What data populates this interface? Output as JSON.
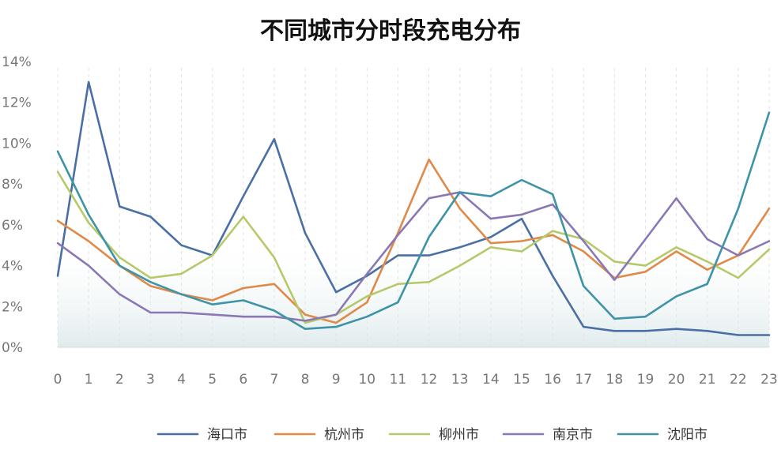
{
  "chart_data": {
    "type": "line",
    "title": "不同城市分时段充电分布",
    "xlabel": "",
    "ylabel": "",
    "categories": [
      "0",
      "1",
      "2",
      "3",
      "4",
      "5",
      "6",
      "7",
      "8",
      "9",
      "10",
      "11",
      "12",
      "13",
      "14",
      "15",
      "16",
      "17",
      "18",
      "19",
      "20",
      "21",
      "22",
      "23"
    ],
    "ylim": [
      0,
      14
    ],
    "yticks": [
      "0%",
      "2%",
      "4%",
      "6%",
      "8%",
      "10%",
      "12%",
      "14%"
    ],
    "grid": "vertical dashed",
    "legend_position": "bottom",
    "series": [
      {
        "name": "海口市",
        "color": "#4a6fa5",
        "values": [
          3.5,
          13.0,
          6.9,
          6.4,
          5.0,
          4.5,
          7.4,
          10.2,
          5.6,
          2.7,
          3.5,
          4.5,
          4.5,
          4.9,
          5.4,
          6.3,
          3.5,
          1.0,
          0.8,
          0.8,
          0.9,
          0.8,
          0.6,
          0.6
        ]
      },
      {
        "name": "杭州市",
        "color": "#e08a4a",
        "values": [
          6.2,
          5.2,
          4.0,
          3.0,
          2.6,
          2.3,
          2.9,
          3.1,
          1.6,
          1.2,
          2.2,
          5.6,
          9.2,
          6.8,
          5.1,
          5.2,
          5.5,
          4.7,
          3.4,
          3.7,
          4.7,
          3.8,
          4.5,
          6.8
        ]
      },
      {
        "name": "柳州市",
        "color": "#b6c96a",
        "values": [
          8.6,
          6.1,
          4.4,
          3.4,
          3.6,
          4.5,
          6.4,
          4.4,
          1.2,
          1.6,
          2.5,
          3.1,
          3.2,
          4.0,
          4.9,
          4.7,
          5.7,
          5.3,
          4.2,
          4.0,
          4.9,
          4.2,
          3.4,
          4.8
        ]
      },
      {
        "name": "南京市",
        "color": "#8a78b5",
        "values": [
          5.1,
          4.0,
          2.6,
          1.7,
          1.7,
          1.6,
          1.5,
          1.5,
          1.3,
          1.6,
          3.6,
          5.5,
          7.3,
          7.6,
          6.3,
          6.5,
          7.0,
          5.2,
          3.3,
          5.3,
          7.3,
          5.3,
          4.5,
          5.2
        ]
      },
      {
        "name": "沈阳市",
        "color": "#3e93a6",
        "values": [
          9.6,
          6.5,
          4.0,
          3.2,
          2.6,
          2.1,
          2.3,
          1.8,
          0.9,
          1.0,
          1.5,
          2.2,
          5.4,
          7.6,
          7.4,
          8.2,
          7.5,
          3.0,
          1.4,
          1.5,
          2.5,
          3.1,
          6.8,
          11.5
        ]
      }
    ]
  }
}
